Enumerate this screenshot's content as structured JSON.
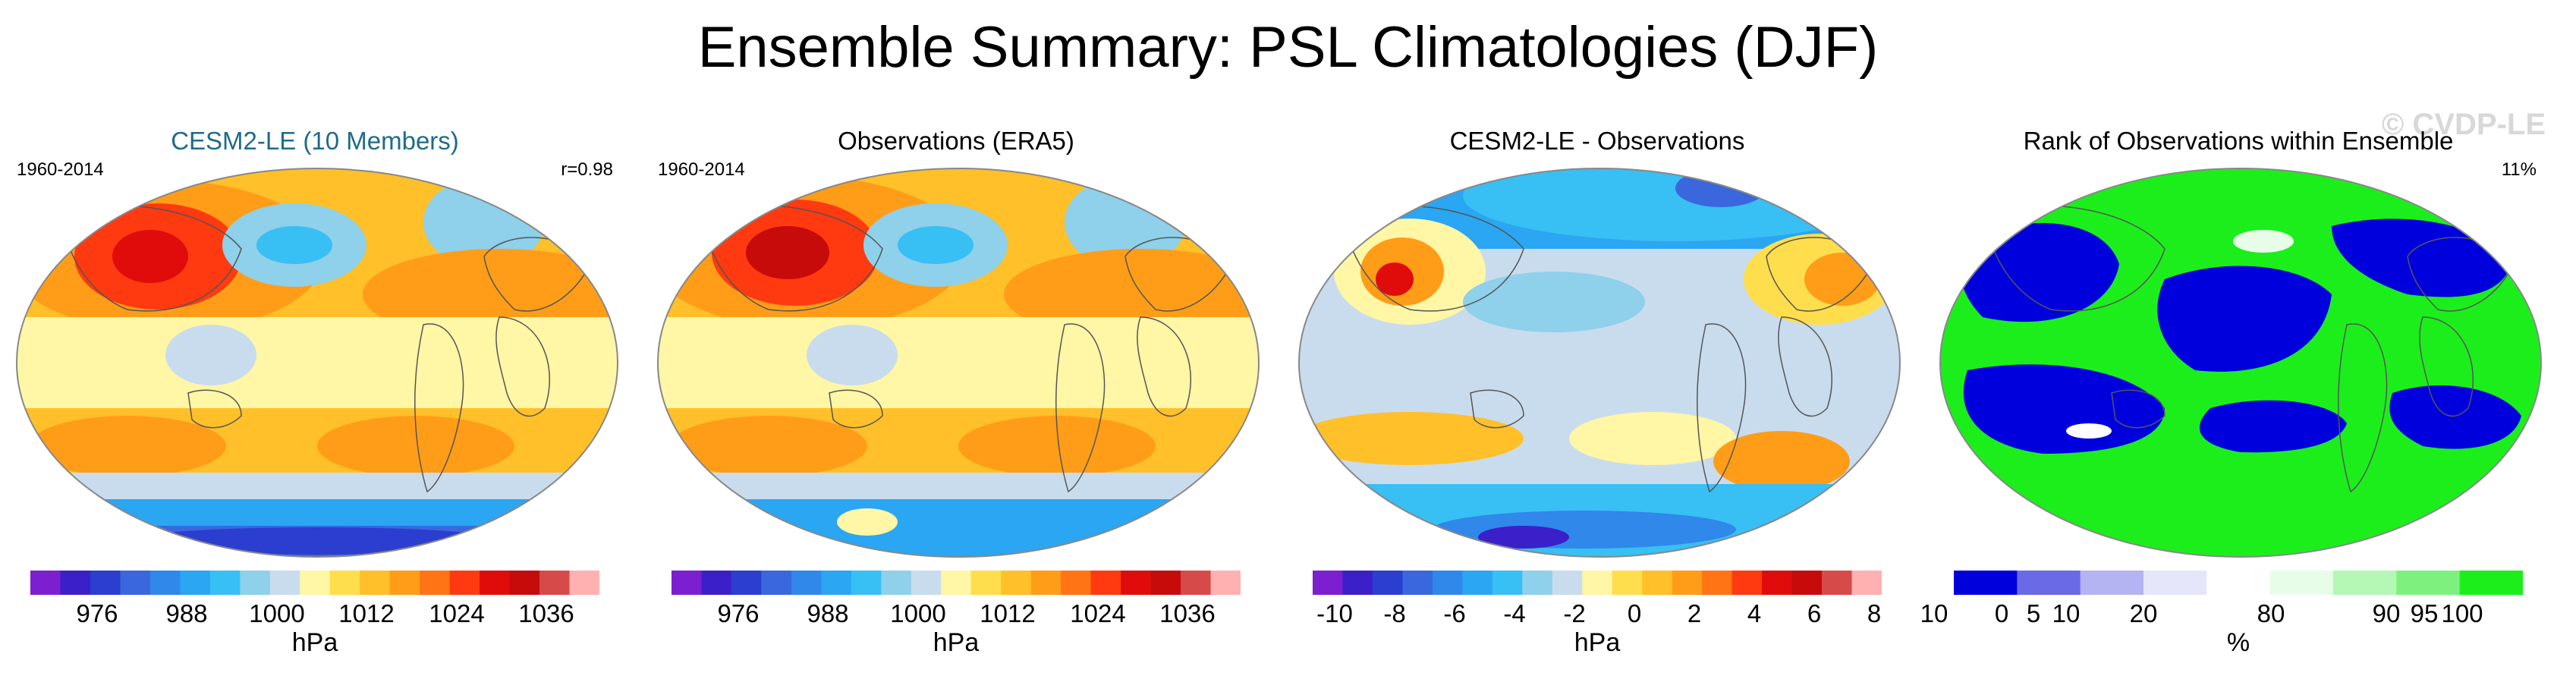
{
  "title": "Ensemble Summary: PSL Climatologies (DJF)",
  "watermark": "© CVDP-LE",
  "colors": {
    "palette": [
      "#7b1fd1",
      "#3b20c9",
      "#2b3ecf",
      "#3a67dd",
      "#2f88ea",
      "#2aa6f2",
      "#38bff4",
      "#8fd0ea",
      "#c9dcee",
      "#fff6a6",
      "#ffde4d",
      "#ffc02a",
      "#ff9d18",
      "#ff7414",
      "#ff3a10",
      "#e00c0c",
      "#c70b0b",
      "#d64a4a",
      "#ffb1b1"
    ],
    "rank": [
      "#0000dd",
      "#6a6ae6",
      "#b4b4f2",
      "#e6e6fa",
      "#ffffff",
      "#e7fde7",
      "#b5f7b5",
      "#7ef07e",
      "#1cee1c"
    ]
  },
  "panels": [
    {
      "title": "CESM2-LE (10 Members)",
      "left_label": "1960-2014",
      "right_label": "r=0.98",
      "unit": "hPa",
      "ticks": [
        "976",
        "988",
        "1000",
        "1012",
        "1024",
        "1036"
      ]
    },
    {
      "title": "Observations (ERA5)",
      "left_label": "1960-2014",
      "right_label": "",
      "unit": "hPa",
      "ticks": [
        "976",
        "988",
        "1000",
        "1012",
        "1024",
        "1036"
      ]
    },
    {
      "title": "CESM2-LE - Observations",
      "left_label": "",
      "right_label": "",
      "unit": "hPa",
      "ticks": [
        "-10",
        "-8",
        "-6",
        "-4",
        "-2",
        "0",
        "2",
        "4",
        "6",
        "8",
        "10"
      ]
    },
    {
      "title": "Rank of Observations within Ensemble",
      "left_label": "",
      "right_label": "11%",
      "unit": "%",
      "ticks": [
        "0",
        "5",
        "10",
        "20",
        "80",
        "90",
        "95",
        "100"
      ]
    }
  ]
}
